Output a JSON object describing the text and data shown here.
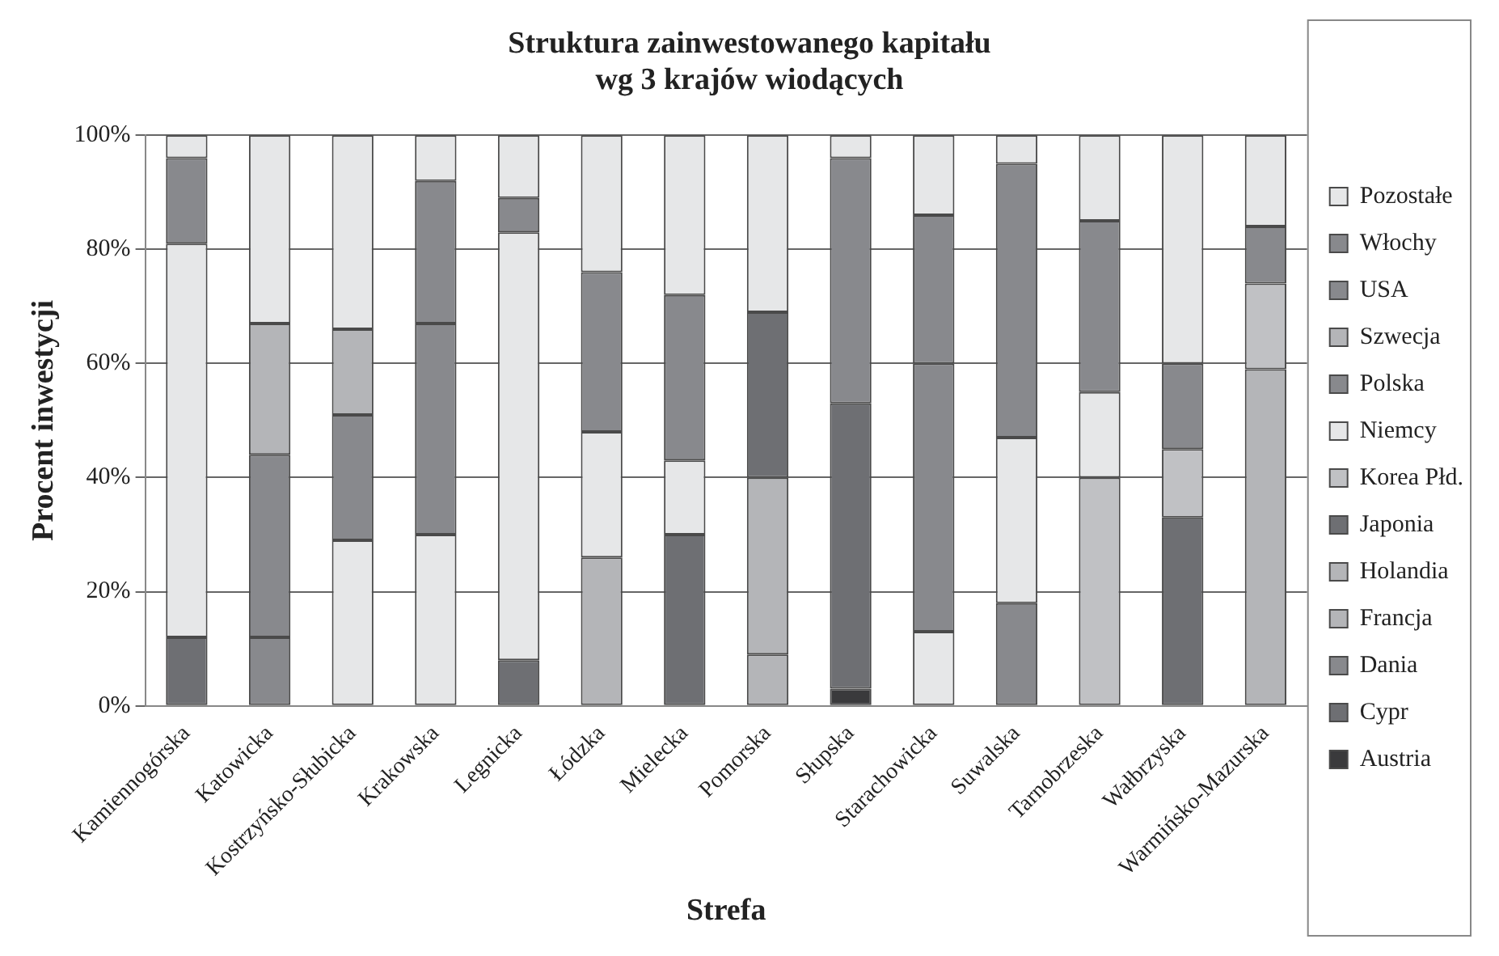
{
  "chart_data": {
    "type": "bar",
    "stacked": true,
    "title": "Struktura zainwestowanego kapitału\nwg 3 krajów wiodących",
    "xlabel": "Strefa",
    "ylabel": "Procent inwestycji",
    "categories": [
      "Kamiennogórska",
      "Katowicka",
      "Kostrzyńsko-Słubicka",
      "Krakowska",
      "Legnicka",
      "Łódzka",
      "Mielecka",
      "Pomorska",
      "Słupska",
      "Starachowicka",
      "Suwalska",
      "Tarnobrzeska",
      "Wałbrzyska",
      "Warmińsko-Mazurska"
    ],
    "series": [
      {
        "name": "Austria",
        "color": "#3a3a3c",
        "values": [
          null,
          null,
          null,
          null,
          null,
          null,
          null,
          null,
          3,
          null,
          null,
          null,
          null,
          null
        ]
      },
      {
        "name": "Cypr",
        "color": "#6e6f73",
        "values": [
          null,
          null,
          null,
          null,
          null,
          null,
          30,
          null,
          50,
          null,
          null,
          null,
          null,
          null
        ]
      },
      {
        "name": "Dania",
        "color": "#88898d",
        "values": [
          null,
          12,
          null,
          null,
          null,
          null,
          null,
          null,
          null,
          null,
          18,
          null,
          null,
          null
        ]
      },
      {
        "name": "Francja",
        "color": "#b4b5b8",
        "values": [
          null,
          null,
          null,
          null,
          null,
          null,
          null,
          9,
          null,
          null,
          null,
          null,
          null,
          59
        ]
      },
      {
        "name": "Holandia",
        "color": "#b4b5b8",
        "values": [
          null,
          null,
          null,
          null,
          null,
          26,
          null,
          31,
          null,
          null,
          null,
          null,
          null,
          null
        ]
      },
      {
        "name": "Japonia",
        "color": "#6e6f73",
        "values": [
          12,
          null,
          null,
          null,
          8,
          null,
          null,
          29,
          null,
          null,
          null,
          null,
          33,
          null
        ]
      },
      {
        "name": "Korea Płd.",
        "color": "#c0c1c4",
        "values": [
          null,
          null,
          null,
          null,
          null,
          null,
          null,
          null,
          null,
          null,
          null,
          40,
          12,
          15
        ]
      },
      {
        "name": "Niemcy",
        "color": "#e6e7e8",
        "values": [
          69,
          null,
          29,
          30,
          75,
          22,
          13,
          null,
          null,
          13,
          29,
          15,
          null,
          null
        ]
      },
      {
        "name": "Polska",
        "color": "#88898d",
        "values": [
          null,
          32,
          22,
          37,
          null,
          null,
          null,
          null,
          43,
          47,
          48,
          null,
          null,
          null
        ]
      },
      {
        "name": "Szwecja",
        "color": "#b4b5b8",
        "values": [
          null,
          23,
          15,
          null,
          null,
          null,
          null,
          null,
          null,
          null,
          null,
          null,
          null,
          null
        ]
      },
      {
        "name": "USA",
        "color": "#88898d",
        "values": [
          15,
          null,
          null,
          25,
          6,
          null,
          29,
          null,
          null,
          26,
          null,
          30,
          null,
          10
        ]
      },
      {
        "name": "Włochy",
        "color": "#88898d",
        "values": [
          null,
          null,
          null,
          null,
          null,
          28,
          null,
          null,
          null,
          null,
          null,
          null,
          15,
          null
        ]
      },
      {
        "name": "Pozostałe",
        "color": "#e6e7e8",
        "values": [
          4,
          33,
          34,
          8,
          11,
          24,
          28,
          31,
          4,
          14,
          5,
          15,
          40,
          16
        ]
      }
    ],
    "ylim": [
      0,
      100
    ],
    "yticks": [
      {
        "value": 0,
        "label": "0%"
      },
      {
        "value": 20,
        "label": "20%"
      },
      {
        "value": 40,
        "label": "40%"
      },
      {
        "value": 60,
        "label": "60%"
      },
      {
        "value": 80,
        "label": "80%"
      },
      {
        "value": 100,
        "label": "100%"
      }
    ],
    "grid": "y",
    "legend": "right"
  }
}
